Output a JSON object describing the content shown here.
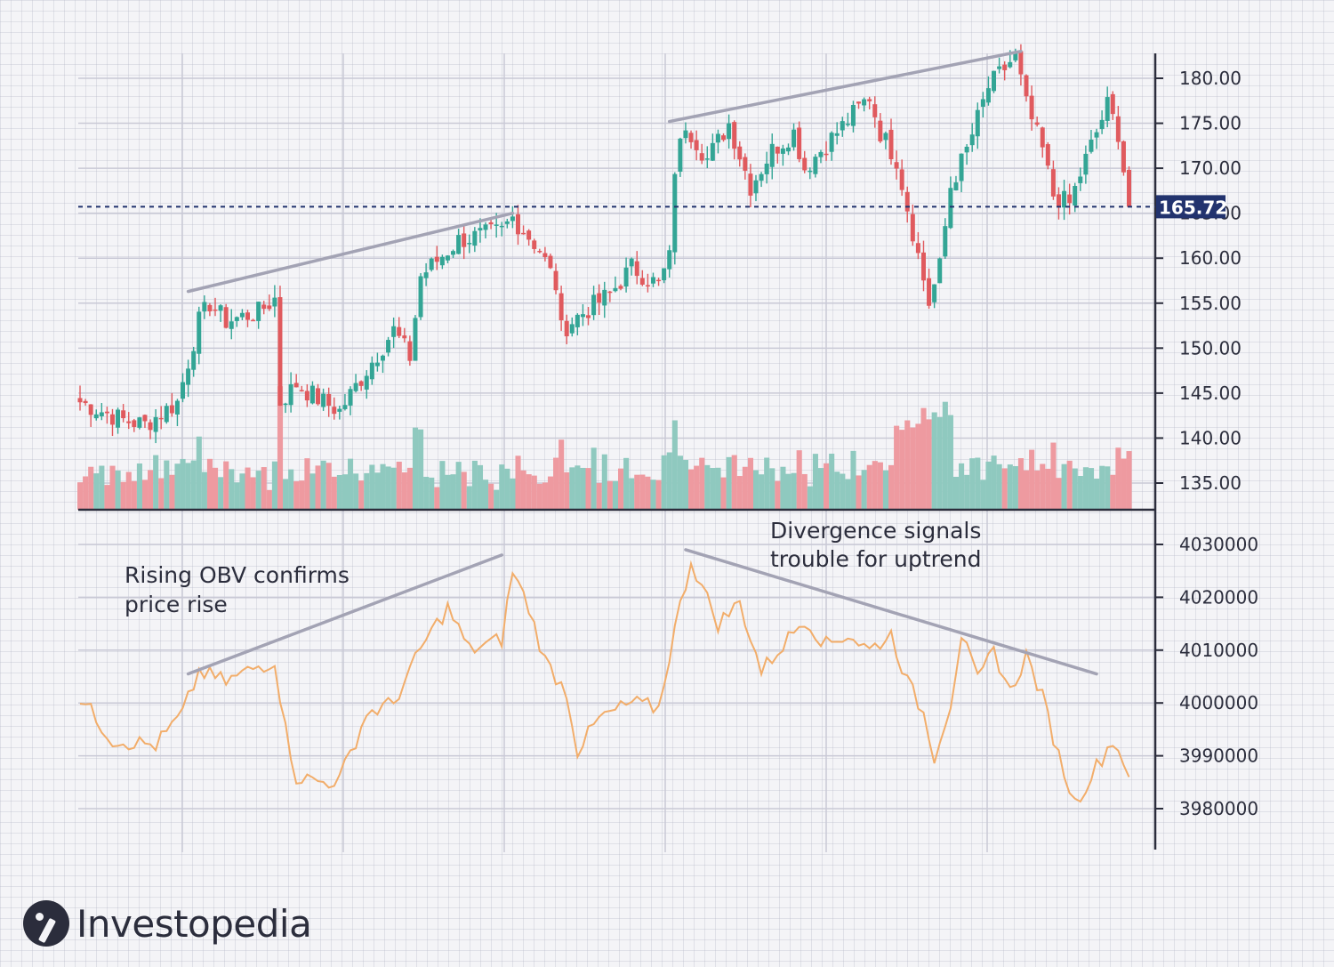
{
  "brand": {
    "name": "Investopedia",
    "logo_icon": "investopedia-logo-icon"
  },
  "colors": {
    "up": "#33a595",
    "down": "#e05a5e",
    "vol_up": "#8fc9bf",
    "vol_down": "#ee9aa0",
    "obv": "#f2ad6a",
    "trendline": "#a3a3b4",
    "current": "#22336e",
    "axis": "#2b2d3c"
  },
  "chart_data": [
    {
      "type": "candlestick",
      "title": "",
      "ylim": [
        132,
        183
      ],
      "yticks": [
        "135.00",
        "140.00",
        "145.00",
        "150.00",
        "155.00",
        "160.00",
        "165.00",
        "170.00",
        "175.00",
        "180.00"
      ],
      "current_price": {
        "value": 165.72,
        "label": "165.72"
      },
      "grid": true,
      "waypoints": [
        [
          0,
          144
        ],
        [
          8,
          142
        ],
        [
          12,
          141.5
        ],
        [
          18,
          144
        ],
        [
          22,
          153
        ],
        [
          24,
          155
        ],
        [
          27,
          153
        ],
        [
          33,
          154
        ],
        [
          36,
          155.5
        ],
        [
          37,
          144
        ],
        [
          40,
          146
        ],
        [
          45,
          144
        ],
        [
          48,
          143
        ],
        [
          54,
          148.5
        ],
        [
          58,
          152
        ],
        [
          61,
          149
        ],
        [
          63,
          158
        ],
        [
          70,
          162
        ],
        [
          78,
          163
        ],
        [
          80,
          164.5
        ],
        [
          85,
          161
        ],
        [
          88,
          157
        ],
        [
          89,
          152
        ],
        [
          92,
          153.5
        ],
        [
          98,
          156
        ],
        [
          102,
          159
        ],
        [
          107,
          157
        ],
        [
          109,
          160
        ],
        [
          110,
          170
        ],
        [
          112,
          175
        ],
        [
          116,
          171
        ],
        [
          120,
          175
        ],
        [
          124,
          168
        ],
        [
          128,
          172
        ],
        [
          132,
          174
        ],
        [
          134,
          170
        ],
        [
          140,
          174
        ],
        [
          146,
          178
        ],
        [
          148,
          174
        ],
        [
          151,
          171
        ],
        [
          154,
          163
        ],
        [
          157,
          155
        ],
        [
          159,
          159
        ],
        [
          161,
          168
        ],
        [
          164,
          172
        ],
        [
          168,
          179
        ],
        [
          173,
          182.5
        ],
        [
          175,
          177
        ],
        [
          178,
          172
        ],
        [
          180,
          167
        ],
        [
          183,
          166
        ],
        [
          186,
          171
        ],
        [
          190,
          177
        ],
        [
          192,
          174
        ],
        [
          194,
          165.72
        ]
      ],
      "trendlines": [
        {
          "from": [
            20,
            156.3
          ],
          "to": [
            80,
            165.0
          ]
        },
        {
          "from": [
            109,
            175.2
          ],
          "to": [
            174,
            183.0
          ]
        }
      ]
    },
    {
      "type": "bar",
      "series": "volume",
      "relative": true,
      "note_colors": "bars colored by candle direction"
    },
    {
      "type": "line",
      "series_name": "",
      "ylim": [
        3974000,
        4034000
      ],
      "yticks": [
        "3980000",
        "3990000",
        "4000000",
        "4010000",
        "4020000",
        "4030000"
      ],
      "waypoints": [
        [
          0,
          4001000
        ],
        [
          6,
          3993000
        ],
        [
          14,
          3992000
        ],
        [
          19,
          3998000
        ],
        [
          22,
          4006000
        ],
        [
          27,
          4004000
        ],
        [
          32,
          4006500
        ],
        [
          36,
          4008000
        ],
        [
          38,
          3995000
        ],
        [
          40,
          3986000
        ],
        [
          45,
          3985000
        ],
        [
          48,
          3985500
        ],
        [
          53,
          3998000
        ],
        [
          58,
          4000000
        ],
        [
          64,
          4012000
        ],
        [
          68,
          4018000
        ],
        [
          72,
          4010000
        ],
        [
          78,
          4012000
        ],
        [
          80,
          4025000
        ],
        [
          83,
          4018000
        ],
        [
          86,
          4008000
        ],
        [
          90,
          4002000
        ],
        [
          92,
          3991000
        ],
        [
          96,
          3997000
        ],
        [
          102,
          4000000
        ],
        [
          107,
          3999000
        ],
        [
          110,
          4014000
        ],
        [
          113,
          4027000
        ],
        [
          115,
          4022000
        ],
        [
          118,
          4015000
        ],
        [
          122,
          4019000
        ],
        [
          126,
          4006000
        ],
        [
          130,
          4011000
        ],
        [
          134,
          4016000
        ],
        [
          138,
          4011000
        ],
        [
          142,
          4013000
        ],
        [
          146,
          4010000
        ],
        [
          150,
          4013000
        ],
        [
          153,
          4004000
        ],
        [
          156,
          3998000
        ],
        [
          158,
          3990000
        ],
        [
          161,
          4000000
        ],
        [
          163,
          4013000
        ],
        [
          166,
          4004000
        ],
        [
          169,
          4010000
        ],
        [
          172,
          4002000
        ],
        [
          175,
          4009000
        ],
        [
          178,
          4001000
        ],
        [
          181,
          3990000
        ],
        [
          184,
          3981000
        ],
        [
          188,
          3988000
        ],
        [
          191,
          3993000
        ],
        [
          194,
          3987000
        ]
      ],
      "trendlines": [
        {
          "from": [
            20,
            4005500
          ],
          "to": [
            78,
            4028000
          ]
        },
        {
          "from": [
            112,
            4029000
          ],
          "to": [
            188,
            4005500
          ]
        }
      ]
    }
  ],
  "annotations": {
    "rising": [
      "Rising OBV confirms",
      "price rise"
    ],
    "divergence": [
      "Divergence signals",
      "trouble for uptrend"
    ]
  }
}
